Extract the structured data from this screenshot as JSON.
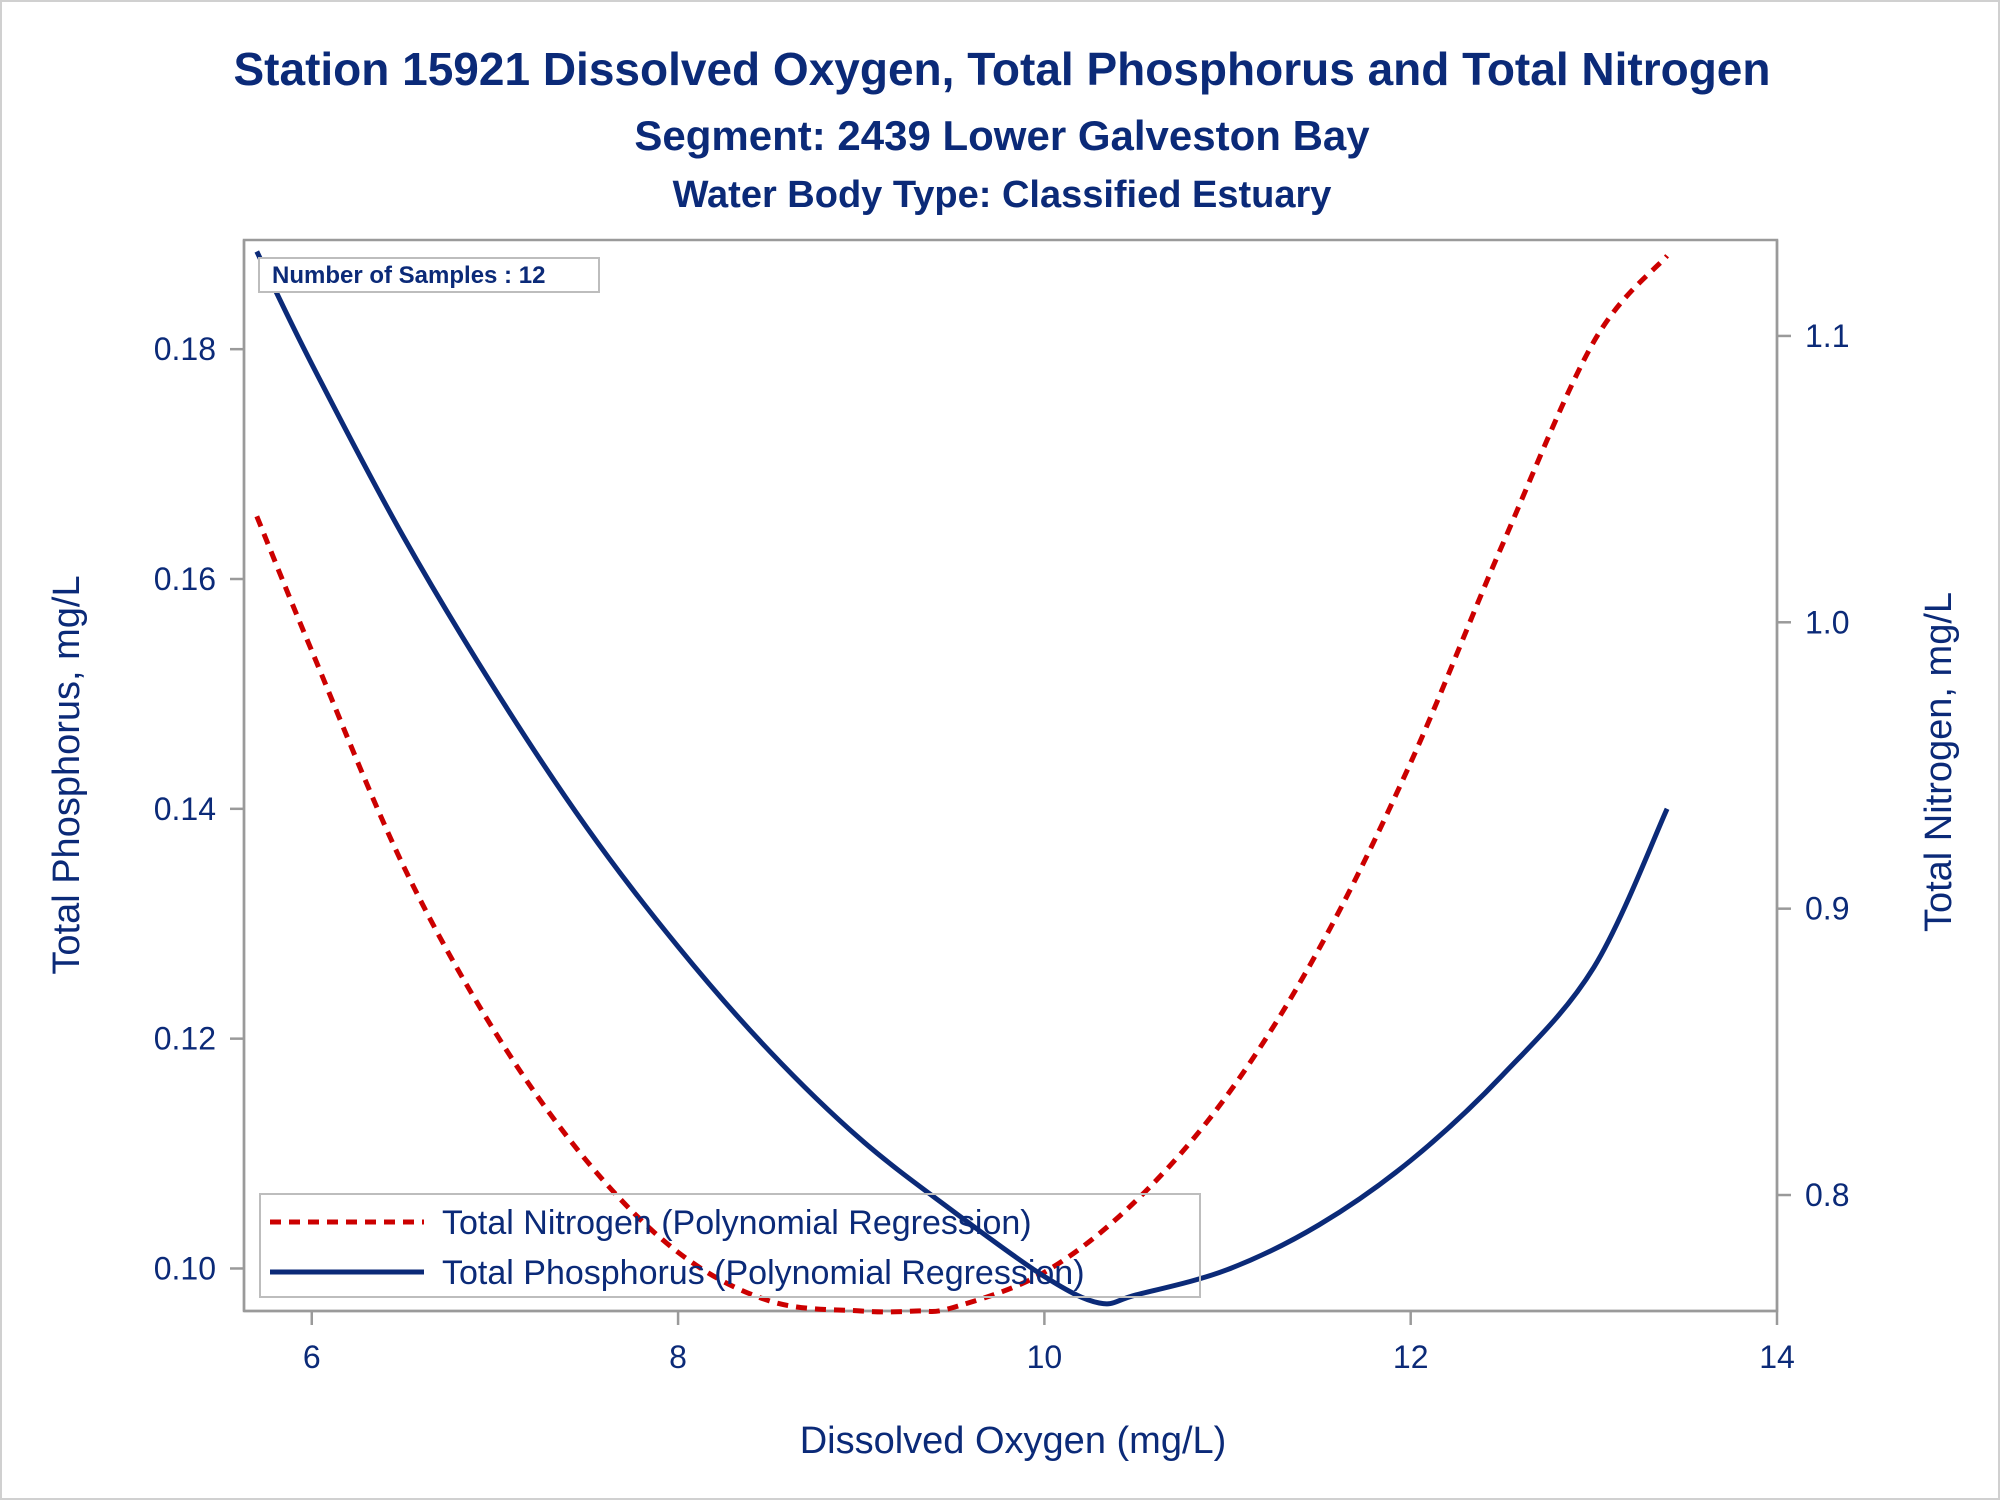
{
  "titles": {
    "line1": "Station 15921  Dissolved Oxygen, Total Phosphorus and Total Nitrogen",
    "line2": "Segment: 2439  Lower Galveston Bay",
    "line3": "Water Body Type: Classified Estuary"
  },
  "inset_note": "Number of Samples : 12",
  "colors": {
    "text": "#0b2a78",
    "phosphorus": "#0b2a78",
    "nitrogen": "#cc0000",
    "axis": "#9a9a9a"
  },
  "chart_data": {
    "type": "line",
    "xlabel": "Dissolved Oxygen (mg/L)",
    "ylabel_left": "Total Phosphorus, mg/L",
    "ylabel_right": "Total Nitrogen, mg/L",
    "xlim": [
      5.63,
      14.0
    ],
    "ylim_left": [
      0.0963,
      0.1895
    ],
    "ylim_right": [
      0.7595,
      1.1335
    ],
    "x_ticks": [
      "6",
      "8",
      "10",
      "12",
      "14"
    ],
    "y_left_ticks": [
      "0.10",
      "0.12",
      "0.14",
      "0.16",
      "0.18"
    ],
    "y_right_ticks": [
      "0.8",
      "0.9",
      "1.0",
      "1.1"
    ],
    "grid": false,
    "legend_position": "bottom-left inside",
    "series": [
      {
        "name": "Total Nitrogen (Polynomial Regression)",
        "axis": "right",
        "style": "dashed",
        "color": "#cc0000",
        "x": [
          5.7,
          6.0,
          6.5,
          7.0,
          7.5,
          8.0,
          8.5,
          9.0,
          9.3,
          9.5,
          10.0,
          10.5,
          11.0,
          11.5,
          12.0,
          12.5,
          13.0,
          13.4
        ],
        "y": [
          1.037,
          0.99,
          0.915,
          0.857,
          0.812,
          0.78,
          0.763,
          0.7595,
          0.7595,
          0.7607,
          0.773,
          0.798,
          0.835,
          0.886,
          0.951,
          1.027,
          1.098,
          1.128
        ]
      },
      {
        "name": "Total Phosphorus (Polynomial Regression)",
        "axis": "left",
        "style": "solid",
        "color": "#0b2a78",
        "x": [
          5.7,
          6.0,
          6.5,
          7.0,
          7.5,
          8.0,
          8.5,
          9.0,
          9.5,
          10.0,
          10.3,
          10.5,
          11.0,
          11.5,
          12.0,
          12.5,
          13.0,
          13.4
        ],
        "y": [
          0.1885,
          0.1787,
          0.1637,
          0.1504,
          0.1384,
          0.128,
          0.1189,
          0.1112,
          0.105,
          0.0993,
          0.097,
          0.0977,
          0.0999,
          0.1038,
          0.1094,
          0.1168,
          0.1262,
          0.14
        ]
      }
    ]
  }
}
